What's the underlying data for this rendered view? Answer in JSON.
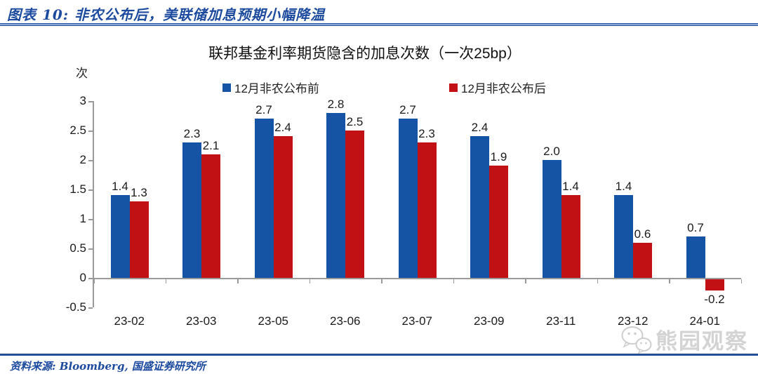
{
  "header": {
    "title": "图表 10:  非农公布后，美联储加息预期小幅降温"
  },
  "chart_data": {
    "type": "bar",
    "title": "联邦基金利率期货隐含的加息次数（一次25bp）",
    "unit_label": "次",
    "categories": [
      "23-02",
      "23-03",
      "23-05",
      "23-06",
      "23-07",
      "23-09",
      "23-11",
      "23-12",
      "24-01"
    ],
    "series": [
      {
        "name": "12月非农公布前",
        "color": "#1553a5",
        "values": [
          1.4,
          2.3,
          2.7,
          2.8,
          2.7,
          2.4,
          2.0,
          1.4,
          0.7
        ]
      },
      {
        "name": "12月非农公布后",
        "color": "#c21114",
        "values": [
          1.3,
          2.1,
          2.4,
          2.5,
          2.3,
          1.9,
          1.4,
          0.6,
          -0.2
        ]
      }
    ],
    "ylim": [
      -0.5,
      3
    ],
    "yticks": [
      3,
      2.5,
      2,
      1.5,
      1,
      0.5,
      0,
      -0.5
    ],
    "grid": false,
    "legend_position": "top"
  },
  "watermark": {
    "icon": "wechat-icon",
    "label": "熊园观察"
  },
  "footer": {
    "source": "资料来源: Bloomberg, 国盛证券研究所"
  }
}
